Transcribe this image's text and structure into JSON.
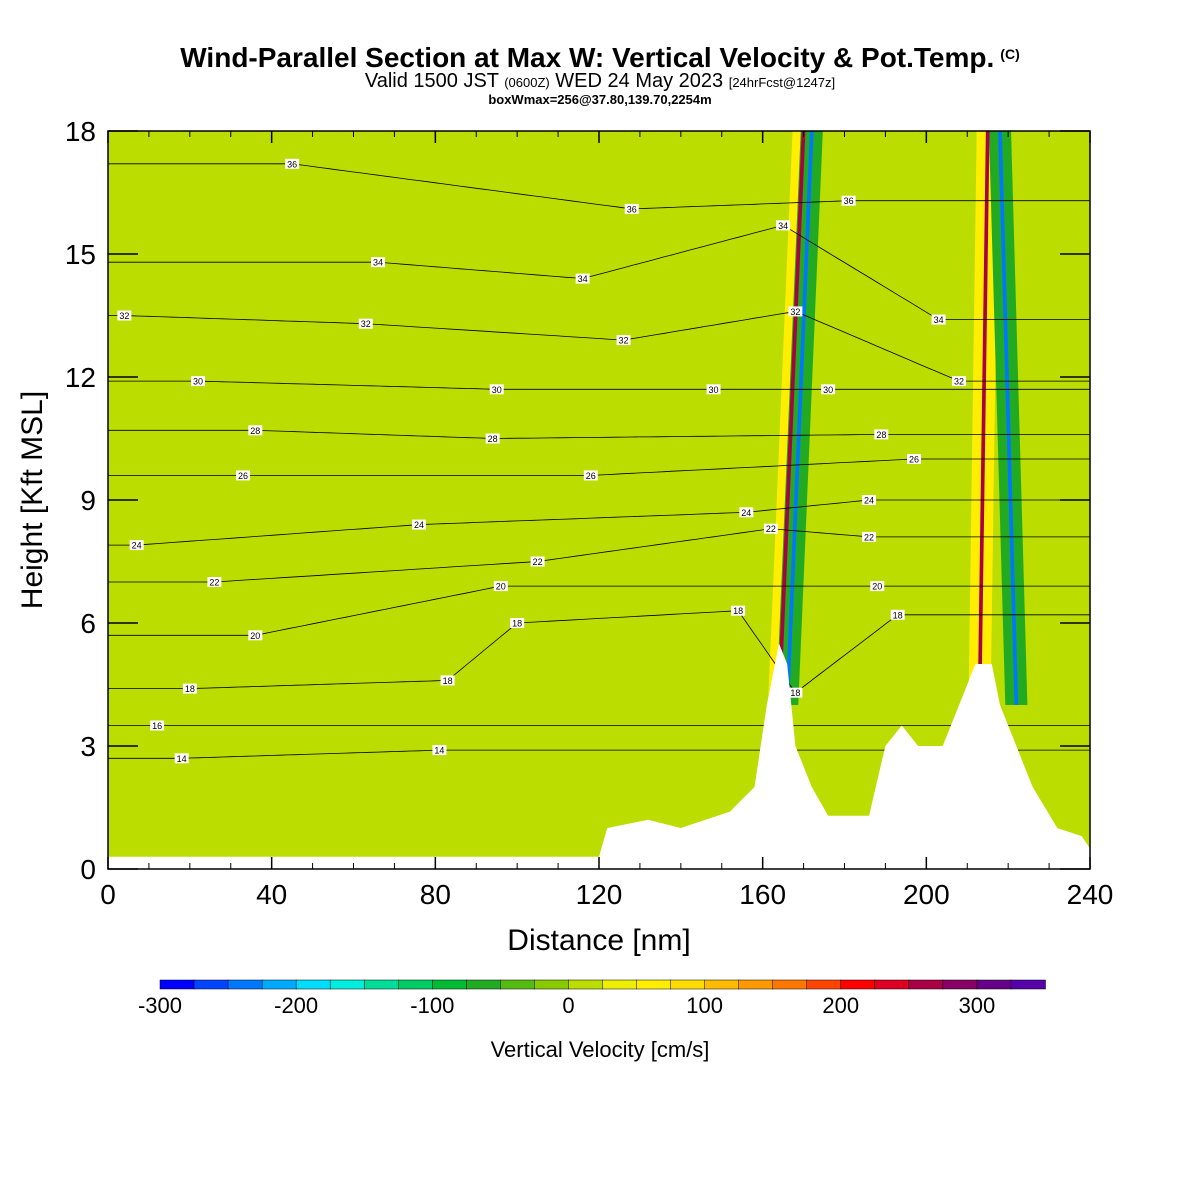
{
  "header": {
    "title": "Wind-Parallel Section at Max W: Vertical Velocity & Pot.Temp.",
    "copyright": "(C)",
    "valid_prefix": "Valid 1500 JST",
    "valid_zulu": "(0600Z)",
    "valid_date": "WED 24 May 2023",
    "forecast_info": "[24hrFcst@1247z]",
    "box_info": "boxWmax=256@37.80,139.70,2254m"
  },
  "chart_data": {
    "type": "heatmap",
    "xlabel": "Distance [nm]",
    "ylabel": "Height [Kft MSL]",
    "xlim": [
      0,
      240
    ],
    "ylim": [
      0,
      18
    ],
    "x_ticks": [
      0,
      40,
      80,
      120,
      160,
      200,
      240
    ],
    "y_ticks": [
      0,
      3,
      6,
      9,
      12,
      15,
      18
    ],
    "colorbar": {
      "label": "Vertical Velocity [cm/s]",
      "min": -300,
      "max": 350,
      "step": 25,
      "tick_values": [
        -300,
        -200,
        -100,
        0,
        100,
        200,
        300
      ],
      "colors": [
        "#0000ff",
        "#0044ff",
        "#0077ff",
        "#00aaff",
        "#00ddff",
        "#00eedd",
        "#00dd99",
        "#00cc66",
        "#00bb33",
        "#22aa22",
        "#55bb11",
        "#88cc00",
        "#bbdd00",
        "#eeee00",
        "#ffee00",
        "#ffdd00",
        "#ffbb00",
        "#ff9900",
        "#ff7700",
        "#ff4400",
        "#ff0000",
        "#dd0022",
        "#aa0044",
        "#880066",
        "#660088",
        "#5500aa"
      ]
    },
    "background_w": 0,
    "vertical_velocity_features": [
      {
        "kind": "updraft",
        "x_bottom": 164,
        "x_top": 170,
        "z_bottom": 4,
        "z_top": 18,
        "w_max": 256
      },
      {
        "kind": "downdraft",
        "x_bottom": 166,
        "x_top": 172,
        "z_bottom": 4,
        "z_top": 18,
        "w_min": -250
      },
      {
        "kind": "updraft",
        "x_bottom": 213,
        "x_top": 215,
        "z_bottom": 4,
        "z_top": 18,
        "w_max": 256
      },
      {
        "kind": "downdraft",
        "x_bottom": 222,
        "x_top": 218,
        "z_bottom": 4,
        "z_top": 18,
        "w_min": -250
      }
    ],
    "terrain": [
      [
        0,
        0.3
      ],
      [
        120,
        0.3
      ],
      [
        122,
        1.0
      ],
      [
        132,
        1.2
      ],
      [
        140,
        1.0
      ],
      [
        152,
        1.4
      ],
      [
        158,
        2.0
      ],
      [
        161,
        4.0
      ],
      [
        164,
        5.5
      ],
      [
        166,
        5.0
      ],
      [
        168,
        3.0
      ],
      [
        172,
        2.0
      ],
      [
        176,
        1.3
      ],
      [
        186,
        1.3
      ],
      [
        190,
        3.0
      ],
      [
        194,
        3.5
      ],
      [
        198,
        3.0
      ],
      [
        204,
        3.0
      ],
      [
        208,
        4.0
      ],
      [
        212,
        5.0
      ],
      [
        216,
        5.0
      ],
      [
        218,
        4.0
      ],
      [
        222,
        3.0
      ],
      [
        226,
        2.0
      ],
      [
        232,
        1.0
      ],
      [
        238,
        0.8
      ],
      [
        240,
        0.5
      ]
    ],
    "theta_levels": [
      14,
      16,
      18,
      20,
      22,
      24,
      26,
      28,
      30,
      32,
      34,
      36
    ],
    "theta_labels": [
      {
        "text": "36",
        "x": 45,
        "z": 17.2
      },
      {
        "text": "36",
        "x": 128,
        "z": 16.1
      },
      {
        "text": "36",
        "x": 181,
        "z": 16.3
      },
      {
        "text": "34",
        "x": 66,
        "z": 14.8
      },
      {
        "text": "34",
        "x": 116,
        "z": 14.4
      },
      {
        "text": "34",
        "x": 165,
        "z": 15.7
      },
      {
        "text": "34",
        "x": 203,
        "z": 13.4
      },
      {
        "text": "32",
        "x": 4,
        "z": 13.5
      },
      {
        "text": "32",
        "x": 63,
        "z": 13.3
      },
      {
        "text": "32",
        "x": 126,
        "z": 12.9
      },
      {
        "text": "32",
        "x": 168,
        "z": 13.6
      },
      {
        "text": "32",
        "x": 208,
        "z": 11.9
      },
      {
        "text": "30",
        "x": 22,
        "z": 11.9
      },
      {
        "text": "30",
        "x": 95,
        "z": 11.7
      },
      {
        "text": "30",
        "x": 148,
        "z": 11.7
      },
      {
        "text": "30",
        "x": 176,
        "z": 11.7
      },
      {
        "text": "28",
        "x": 36,
        "z": 10.7
      },
      {
        "text": "28",
        "x": 94,
        "z": 10.5
      },
      {
        "text": "28",
        "x": 189,
        "z": 10.6
      },
      {
        "text": "26",
        "x": 33,
        "z": 9.6
      },
      {
        "text": "26",
        "x": 118,
        "z": 9.6
      },
      {
        "text": "26",
        "x": 197,
        "z": 10.0
      },
      {
        "text": "24",
        "x": 7,
        "z": 7.9
      },
      {
        "text": "24",
        "x": 76,
        "z": 8.4
      },
      {
        "text": "24",
        "x": 156,
        "z": 8.7
      },
      {
        "text": "24",
        "x": 186,
        "z": 9.0
      },
      {
        "text": "22",
        "x": 26,
        "z": 7.0
      },
      {
        "text": "22",
        "x": 105,
        "z": 7.5
      },
      {
        "text": "22",
        "x": 162,
        "z": 8.3
      },
      {
        "text": "22",
        "x": 186,
        "z": 8.1
      },
      {
        "text": "20",
        "x": 36,
        "z": 5.7
      },
      {
        "text": "20",
        "x": 96,
        "z": 6.9
      },
      {
        "text": "20",
        "x": 188,
        "z": 6.9
      },
      {
        "text": "18",
        "x": 20,
        "z": 4.4
      },
      {
        "text": "18",
        "x": 100,
        "z": 6.0
      },
      {
        "text": "18",
        "x": 154,
        "z": 6.3
      },
      {
        "text": "18",
        "x": 193,
        "z": 6.2
      },
      {
        "text": "18",
        "x": 83,
        "z": 4.6
      },
      {
        "text": "18",
        "x": 168,
        "z": 4.3
      },
      {
        "text": "16",
        "x": 12,
        "z": 3.5
      },
      {
        "text": "14",
        "x": 18,
        "z": 2.7
      },
      {
        "text": "14",
        "x": 81,
        "z": 2.9
      }
    ]
  }
}
